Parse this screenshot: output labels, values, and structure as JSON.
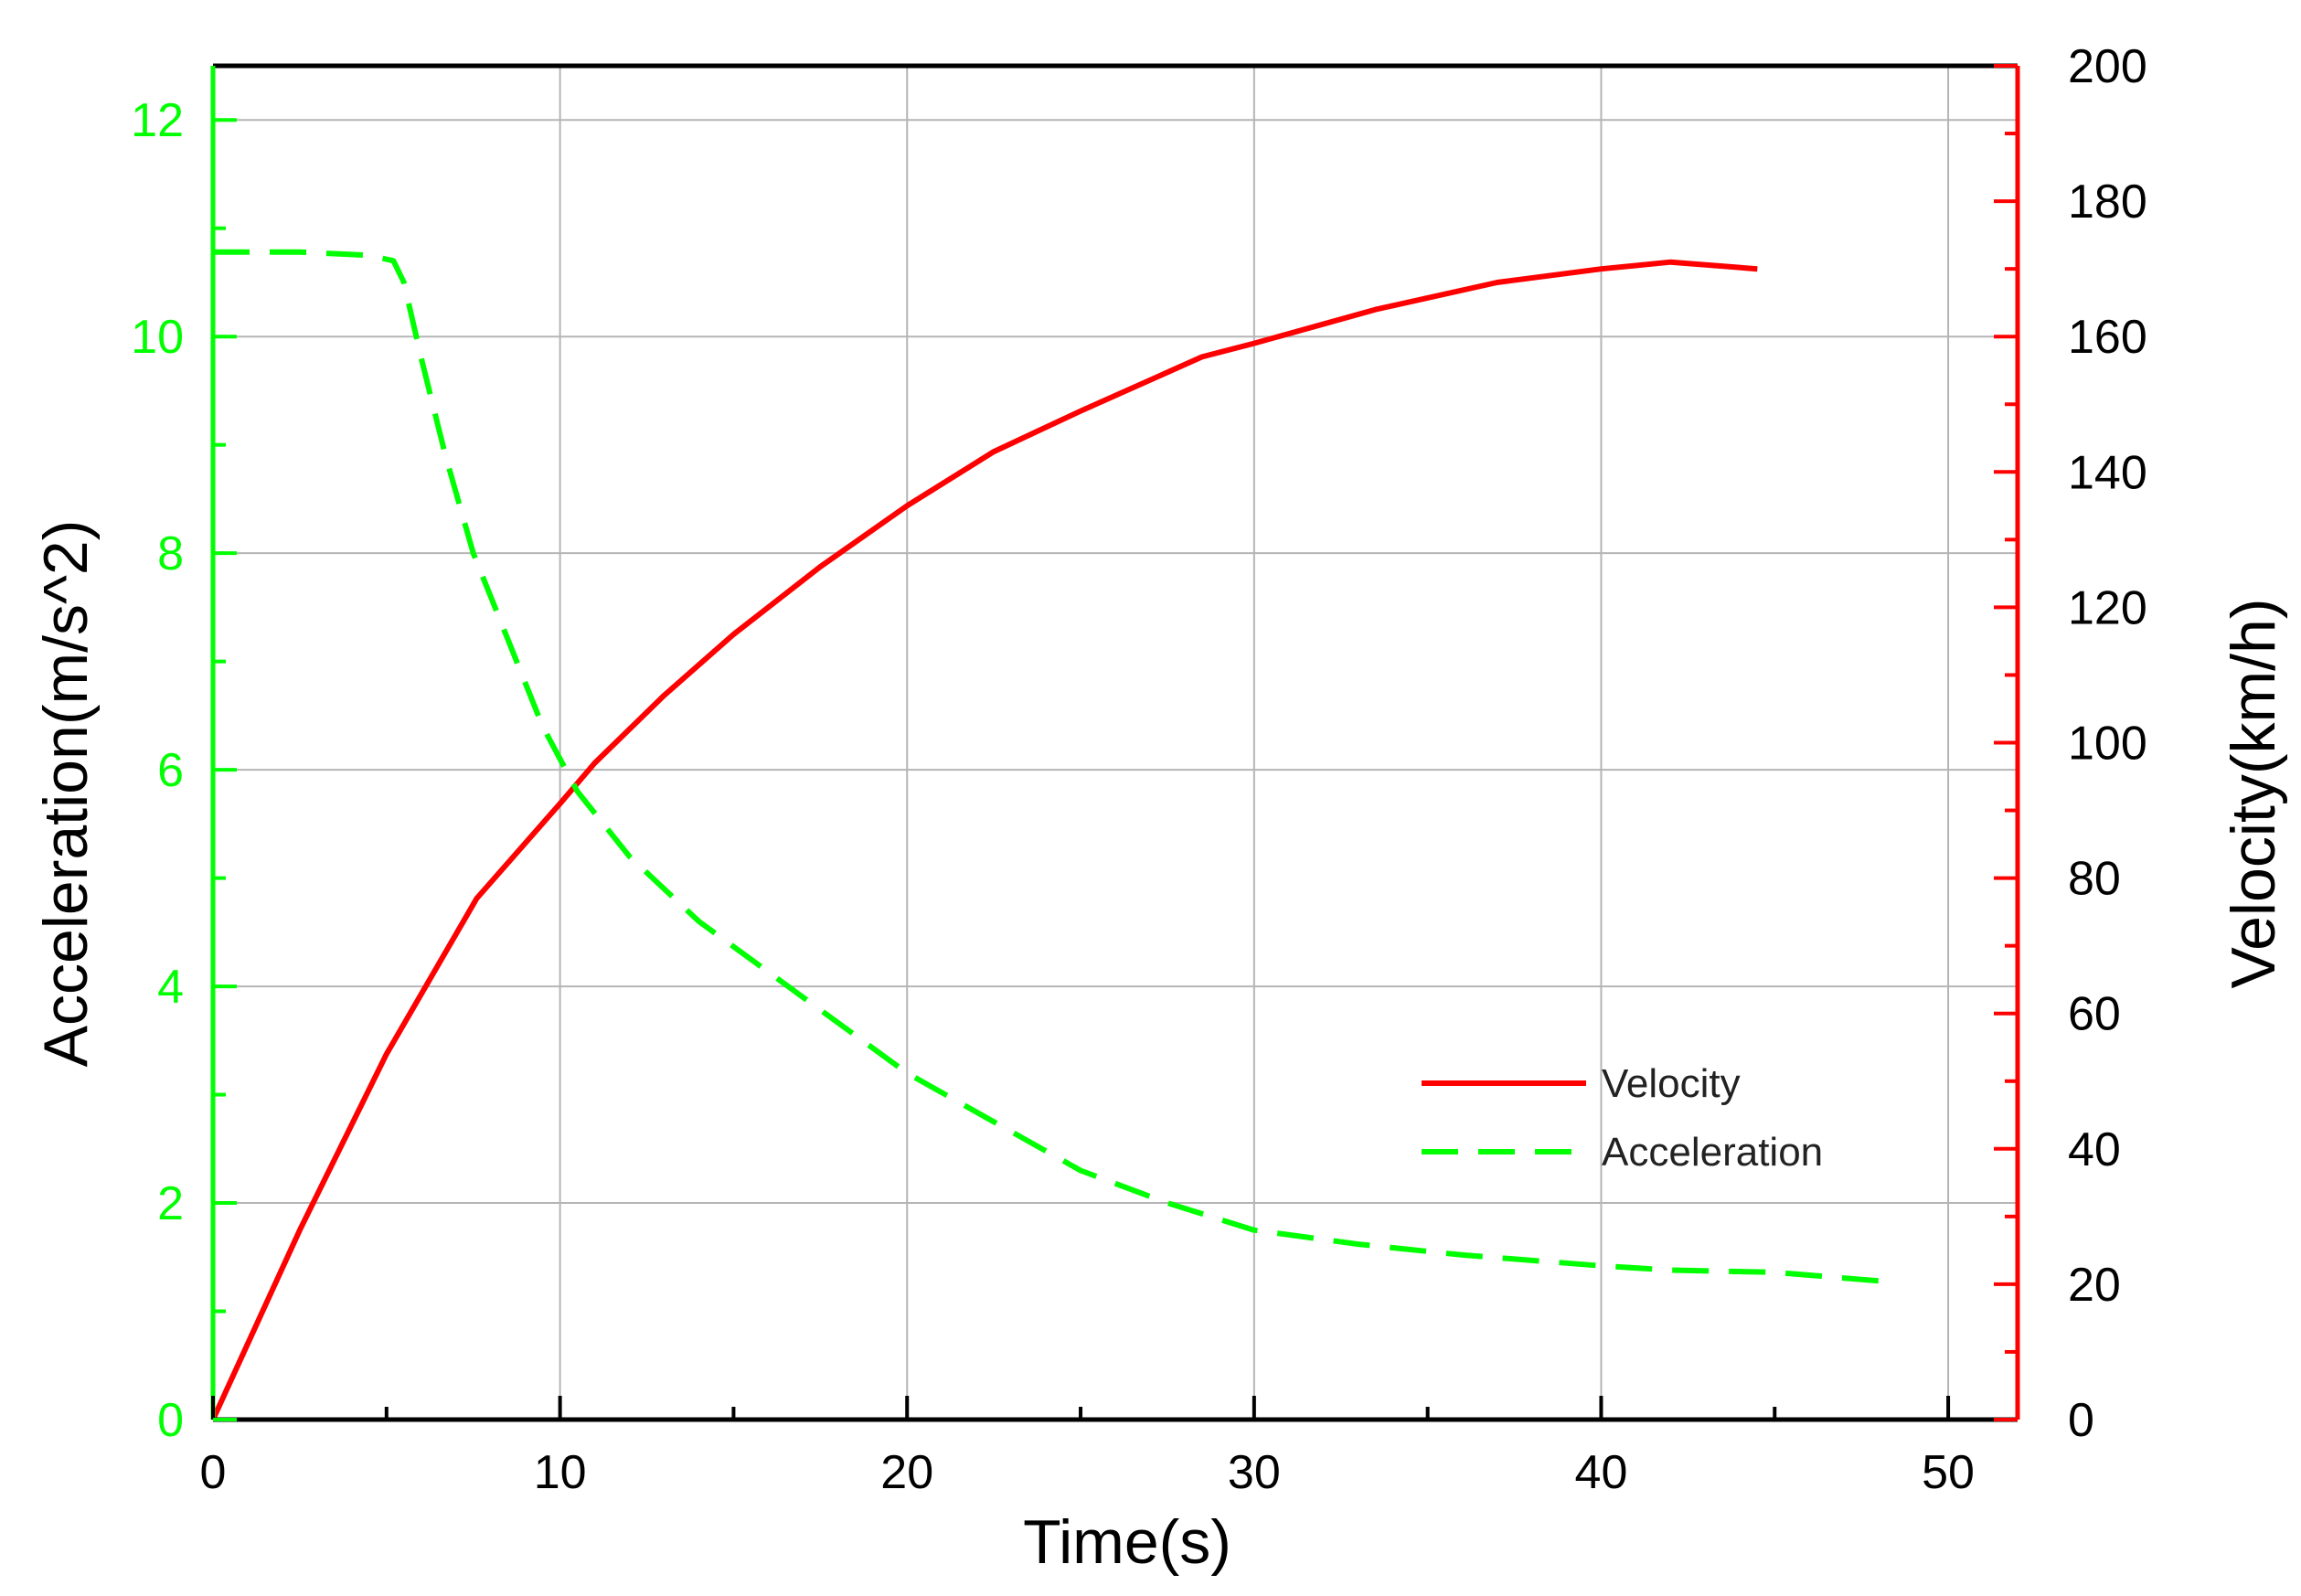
{
  "chart_data": {
    "type": "line",
    "xlabel": "Time(s)",
    "ylabel_left": "Acceleration(m/s^2)",
    "ylabel_right": "Velocity(km/h)",
    "xlim": [
      0,
      52
    ],
    "ylim_left": [
      0,
      12.5
    ],
    "ylim_right": [
      0,
      200
    ],
    "x_ticks": [
      "0",
      "10",
      "20",
      "30",
      "40",
      "50"
    ],
    "y_left_ticks": [
      "0",
      "2",
      "4",
      "6",
      "8",
      "10",
      "12"
    ],
    "y_right_ticks": [
      "0",
      "20",
      "40",
      "60",
      "80",
      "100",
      "120",
      "140",
      "160",
      "180",
      "200"
    ],
    "grid": true,
    "legend_position": "lower-right",
    "colors": {
      "velocity": "#ff0000",
      "acceleration": "#00ff00",
      "left_axis": "#00ff00",
      "right_axis": "#ff0000"
    },
    "series": [
      {
        "name": "Velocity",
        "axis": "right",
        "style": "solid",
        "x": [
          0,
          2.5,
          5,
          7.6,
          10,
          11,
          13,
          15,
          17.5,
          20,
          22.5,
          25,
          28.5,
          30,
          33.5,
          37,
          40,
          42,
          44.5
        ],
        "y": [
          0,
          28,
          54,
          77,
          91,
          97,
          107,
          116,
          126,
          135,
          143,
          149,
          157,
          159,
          164,
          168,
          170,
          171,
          170
        ]
      },
      {
        "name": "Acceleration",
        "axis": "left",
        "style": "dashed",
        "x": [
          0,
          2.5,
          4.5,
          5.2,
          5.5,
          6,
          6.7,
          7.5,
          8.5,
          9.5,
          10.5,
          12,
          14,
          17,
          20,
          22.5,
          25,
          27.5,
          30,
          33,
          36,
          40,
          42,
          45,
          48
        ],
        "y": [
          10.78,
          10.78,
          10.75,
          10.7,
          10.5,
          9.8,
          8.9,
          8.0,
          7.2,
          6.4,
          5.8,
          5.2,
          4.6,
          3.9,
          3.2,
          2.75,
          2.3,
          2.0,
          1.75,
          1.62,
          1.52,
          1.42,
          1.38,
          1.36,
          1.28
        ]
      }
    ],
    "legend": [
      {
        "label": "Velocity",
        "color": "#ff0000",
        "style": "solid"
      },
      {
        "label": "Acceleration",
        "color": "#00ff00",
        "style": "dashed"
      }
    ]
  }
}
